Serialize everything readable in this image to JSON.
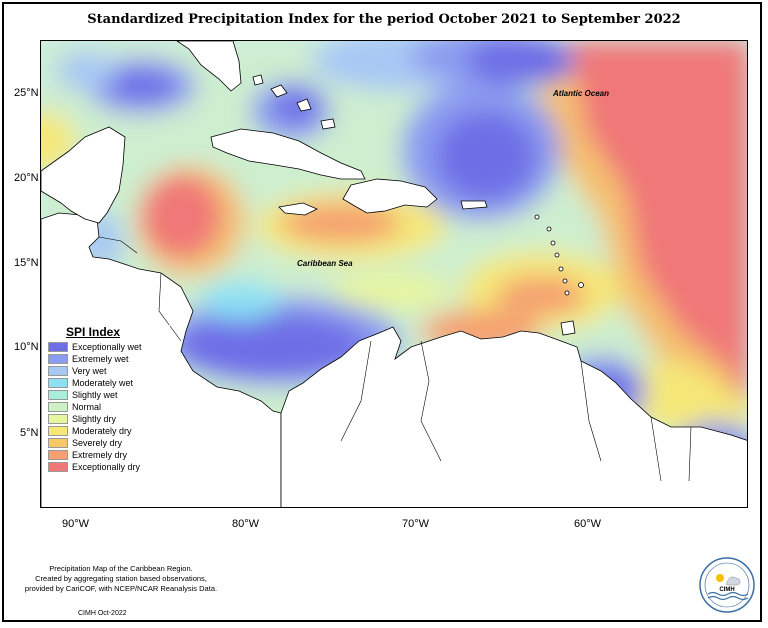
{
  "title": "Standardized Precipitation Index for the period October 2021 to September 2022",
  "map": {
    "labels": {
      "atlantic": "Atlantic Ocean",
      "caribbean": "Caribbean Sea"
    },
    "lat_ticks": [
      "25°N",
      "20°N",
      "15°N",
      "10°N",
      "5°N"
    ],
    "lon_ticks": [
      "90°W",
      "80°W",
      "70°W",
      "60°W"
    ]
  },
  "legend": {
    "title": "SPI Index",
    "items": [
      {
        "label": "Exceptionally wet",
        "color": "#6e6ee6"
      },
      {
        "label": "Extremely wet",
        "color": "#8c9cf0"
      },
      {
        "label": "Very wet",
        "color": "#a8c8f4"
      },
      {
        "label": "Moderately wet",
        "color": "#8ce0f4"
      },
      {
        "label": "Slightly wet",
        "color": "#a8eed8"
      },
      {
        "label": "Normal",
        "color": "#cdf0c4"
      },
      {
        "label": "Slightly dry",
        "color": "#e6f5a0"
      },
      {
        "label": "Moderately dry",
        "color": "#f5e878"
      },
      {
        "label": "Severely dry",
        "color": "#f7c868"
      },
      {
        "label": "Extremely dry",
        "color": "#f5a070"
      },
      {
        "label": "Exceptionally dry",
        "color": "#f07878"
      }
    ]
  },
  "footnote": {
    "line1": "Precipitation Map of the Caribbean Region.",
    "line2": "Created by aggregating station based observations,",
    "line3": "provided by CariCOF, with NCEP/NCAR Reanalysis Data."
  },
  "credit": "CIMH Oct-2022",
  "logo": {
    "text": "CIMH"
  }
}
